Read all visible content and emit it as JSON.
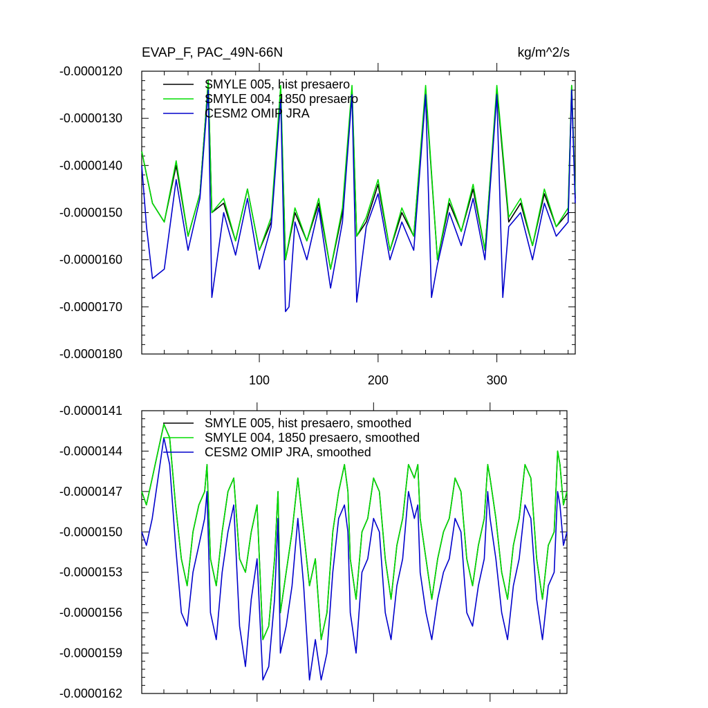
{
  "chart_data": [
    {
      "type": "line",
      "title": "EVAP_F, PAC_49N-66N",
      "units": "kg/m^2/s",
      "xlim": [
        1,
        366
      ],
      "ylim": [
        -1.8e-05,
        -1.2e-05
      ],
      "xticks": [
        100,
        200,
        300
      ],
      "xtick_labels": [
        "100",
        "200",
        "300"
      ],
      "yticks": [
        -1.8e-05,
        -1.7e-05,
        -1.6e-05,
        -1.5e-05,
        -1.4e-05,
        -1.3e-05,
        -1.2e-05
      ],
      "ytick_labels": [
        "-0.0000180",
        "-0.0000170",
        "-0.0000160",
        "-0.0000150",
        "-0.0000140",
        "-0.0000130",
        "-0.0000120"
      ],
      "legend_position": "top-left",
      "series": [
        {
          "name": "SMYLE 005, hist presaero",
          "color": "#000000",
          "x": [
            1,
            10,
            20,
            30,
            40,
            50,
            57,
            60,
            70,
            80,
            90,
            100,
            110,
            118,
            122,
            130,
            140,
            150,
            160,
            170,
            178,
            182,
            190,
            200,
            210,
            220,
            230,
            240,
            250,
            260,
            270,
            280,
            290,
            300,
            310,
            320,
            330,
            340,
            350,
            360,
            363,
            366
          ],
          "values": [
            -1.37e-05,
            -1.48e-05,
            -1.52e-05,
            -1.4e-05,
            -1.55e-05,
            -1.46e-05,
            -1.22e-05,
            -1.5e-05,
            -1.48e-05,
            -1.56e-05,
            -1.45e-05,
            -1.58e-05,
            -1.52e-05,
            -1.24e-05,
            -1.6e-05,
            -1.5e-05,
            -1.56e-05,
            -1.48e-05,
            -1.62e-05,
            -1.5e-05,
            -1.24e-05,
            -1.55e-05,
            -1.52e-05,
            -1.44e-05,
            -1.58e-05,
            -1.5e-05,
            -1.55e-05,
            -1.24e-05,
            -1.6e-05,
            -1.48e-05,
            -1.54e-05,
            -1.45e-05,
            -1.58e-05,
            -1.24e-05,
            -1.52e-05,
            -1.48e-05,
            -1.57e-05,
            -1.46e-05,
            -1.53e-05,
            -1.5e-05,
            -1.23e-05,
            -1.47e-05
          ]
        },
        {
          "name": "SMYLE 004, 1850 presaero",
          "color": "#00dd00",
          "x": [
            1,
            10,
            20,
            30,
            40,
            50,
            57,
            60,
            70,
            80,
            90,
            100,
            110,
            118,
            122,
            130,
            140,
            150,
            160,
            170,
            178,
            182,
            190,
            200,
            210,
            220,
            230,
            240,
            250,
            260,
            270,
            280,
            290,
            300,
            310,
            320,
            330,
            340,
            350,
            360,
            363,
            366
          ],
          "values": [
            -1.37e-05,
            -1.48e-05,
            -1.52e-05,
            -1.39e-05,
            -1.55e-05,
            -1.46e-05,
            -1.22e-05,
            -1.5e-05,
            -1.47e-05,
            -1.56e-05,
            -1.45e-05,
            -1.58e-05,
            -1.51e-05,
            -1.23e-05,
            -1.6e-05,
            -1.49e-05,
            -1.56e-05,
            -1.47e-05,
            -1.62e-05,
            -1.49e-05,
            -1.23e-05,
            -1.55e-05,
            -1.51e-05,
            -1.43e-05,
            -1.58e-05,
            -1.49e-05,
            -1.55e-05,
            -1.23e-05,
            -1.6e-05,
            -1.47e-05,
            -1.54e-05,
            -1.44e-05,
            -1.58e-05,
            -1.23e-05,
            -1.51e-05,
            -1.47e-05,
            -1.57e-05,
            -1.45e-05,
            -1.53e-05,
            -1.49e-05,
            -1.23e-05,
            -1.46e-05
          ]
        },
        {
          "name": "CESM2 OMIP JRA",
          "color": "#0000cc",
          "x": [
            1,
            5,
            10,
            20,
            30,
            40,
            50,
            57,
            60,
            70,
            80,
            90,
            100,
            110,
            118,
            122,
            125,
            130,
            140,
            150,
            160,
            170,
            178,
            182,
            190,
            200,
            210,
            220,
            230,
            240,
            245,
            250,
            260,
            270,
            280,
            290,
            300,
            305,
            310,
            320,
            330,
            340,
            350,
            360,
            363,
            366
          ],
          "values": [
            -1.4e-05,
            -1.53e-05,
            -1.64e-05,
            -1.62e-05,
            -1.43e-05,
            -1.58e-05,
            -1.47e-05,
            -1.24e-05,
            -1.68e-05,
            -1.5e-05,
            -1.59e-05,
            -1.47e-05,
            -1.62e-05,
            -1.53e-05,
            -1.26e-05,
            -1.71e-05,
            -1.7e-05,
            -1.52e-05,
            -1.6e-05,
            -1.49e-05,
            -1.66e-05,
            -1.52e-05,
            -1.25e-05,
            -1.69e-05,
            -1.53e-05,
            -1.46e-05,
            -1.6e-05,
            -1.52e-05,
            -1.58e-05,
            -1.25e-05,
            -1.68e-05,
            -1.61e-05,
            -1.5e-05,
            -1.57e-05,
            -1.47e-05,
            -1.6e-05,
            -1.25e-05,
            -1.68e-05,
            -1.53e-05,
            -1.5e-05,
            -1.6e-05,
            -1.48e-05,
            -1.55e-05,
            -1.52e-05,
            -1.24e-05,
            -1.48e-05
          ]
        }
      ]
    },
    {
      "type": "line",
      "title": "",
      "xlim": [
        1,
        366
      ],
      "ylim": [
        -1.62e-05,
        -1.41e-05
      ],
      "xticks": [
        100,
        200,
        300
      ],
      "xtick_labels": [],
      "yticks": [
        -1.62e-05,
        -1.59e-05,
        -1.56e-05,
        -1.53e-05,
        -1.5e-05,
        -1.47e-05,
        -1.44e-05,
        -1.41e-05
      ],
      "ytick_labels": [
        "-0.0000162",
        "-0.0000159",
        "-0.0000156",
        "-0.0000153",
        "-0.0000150",
        "-0.0000147",
        "-0.0000144",
        "-0.0000141"
      ],
      "legend_position": "top-left",
      "series": [
        {
          "name": "SMYLE 005, hist presaero, smoothed",
          "color": "#000000",
          "x": [
            1,
            5,
            10,
            15,
            20,
            25,
            30,
            35,
            40,
            45,
            50,
            55,
            57,
            60,
            65,
            70,
            75,
            80,
            85,
            90,
            95,
            100,
            105,
            110,
            115,
            118,
            120,
            125,
            130,
            135,
            140,
            145,
            150,
            155,
            160,
            165,
            170,
            175,
            178,
            180,
            185,
            190,
            195,
            200,
            205,
            210,
            215,
            220,
            225,
            230,
            235,
            238,
            240,
            245,
            250,
            255,
            260,
            265,
            270,
            275,
            280,
            285,
            290,
            295,
            298,
            300,
            305,
            310,
            315,
            320,
            325,
            330,
            335,
            340,
            345,
            350,
            355,
            358,
            360,
            363,
            366
          ],
          "values": [
            -1.47e-05,
            -1.48e-05,
            -1.46e-05,
            -1.44e-05,
            -1.42e-05,
            -1.43e-05,
            -1.48e-05,
            -1.52e-05,
            -1.54e-05,
            -1.5e-05,
            -1.48e-05,
            -1.47e-05,
            -1.45e-05,
            -1.52e-05,
            -1.54e-05,
            -1.5e-05,
            -1.47e-05,
            -1.46e-05,
            -1.52e-05,
            -1.53e-05,
            -1.5e-05,
            -1.48e-05,
            -1.58e-05,
            -1.57e-05,
            -1.52e-05,
            -1.47e-05,
            -1.56e-05,
            -1.53e-05,
            -1.5e-05,
            -1.46e-05,
            -1.5e-05,
            -1.54e-05,
            -1.52e-05,
            -1.58e-05,
            -1.56e-05,
            -1.5e-05,
            -1.47e-05,
            -1.45e-05,
            -1.47e-05,
            -1.52e-05,
            -1.55e-05,
            -1.5e-05,
            -1.49e-05,
            -1.46e-05,
            -1.47e-05,
            -1.52e-05,
            -1.55e-05,
            -1.51e-05,
            -1.49e-05,
            -1.45e-05,
            -1.46e-05,
            -1.45e-05,
            -1.49e-05,
            -1.52e-05,
            -1.55e-05,
            -1.52e-05,
            -1.5e-05,
            -1.49e-05,
            -1.46e-05,
            -1.47e-05,
            -1.52e-05,
            -1.54e-05,
            -1.51e-05,
            -1.49e-05,
            -1.45e-05,
            -1.46e-05,
            -1.49e-05,
            -1.53e-05,
            -1.55e-05,
            -1.51e-05,
            -1.49e-05,
            -1.45e-05,
            -1.46e-05,
            -1.52e-05,
            -1.55e-05,
            -1.51e-05,
            -1.5e-05,
            -1.44e-05,
            -1.45e-05,
            -1.48e-05,
            -1.47e-05
          ]
        },
        {
          "name": "SMYLE 004, 1850 presaero, smoothed",
          "color": "#00dd00",
          "x": [
            1,
            5,
            10,
            15,
            20,
            25,
            30,
            35,
            40,
            45,
            50,
            55,
            57,
            60,
            65,
            70,
            75,
            80,
            85,
            90,
            95,
            100,
            105,
            110,
            115,
            118,
            120,
            125,
            130,
            135,
            140,
            145,
            150,
            155,
            160,
            165,
            170,
            175,
            178,
            180,
            185,
            190,
            195,
            200,
            205,
            210,
            215,
            220,
            225,
            230,
            235,
            238,
            240,
            245,
            250,
            255,
            260,
            265,
            270,
            275,
            280,
            285,
            290,
            295,
            298,
            300,
            305,
            310,
            315,
            320,
            325,
            330,
            335,
            340,
            345,
            350,
            355,
            358,
            360,
            363,
            366
          ],
          "values": [
            -1.47e-05,
            -1.48e-05,
            -1.46e-05,
            -1.44e-05,
            -1.42e-05,
            -1.43e-05,
            -1.48e-05,
            -1.52e-05,
            -1.54e-05,
            -1.5e-05,
            -1.48e-05,
            -1.47e-05,
            -1.45e-05,
            -1.52e-05,
            -1.54e-05,
            -1.5e-05,
            -1.47e-05,
            -1.46e-05,
            -1.52e-05,
            -1.53e-05,
            -1.5e-05,
            -1.48e-05,
            -1.58e-05,
            -1.57e-05,
            -1.52e-05,
            -1.47e-05,
            -1.56e-05,
            -1.53e-05,
            -1.5e-05,
            -1.46e-05,
            -1.5e-05,
            -1.54e-05,
            -1.52e-05,
            -1.58e-05,
            -1.56e-05,
            -1.5e-05,
            -1.47e-05,
            -1.45e-05,
            -1.47e-05,
            -1.52e-05,
            -1.55e-05,
            -1.5e-05,
            -1.49e-05,
            -1.46e-05,
            -1.47e-05,
            -1.52e-05,
            -1.55e-05,
            -1.51e-05,
            -1.49e-05,
            -1.45e-05,
            -1.46e-05,
            -1.45e-05,
            -1.49e-05,
            -1.52e-05,
            -1.55e-05,
            -1.52e-05,
            -1.5e-05,
            -1.49e-05,
            -1.46e-05,
            -1.47e-05,
            -1.52e-05,
            -1.54e-05,
            -1.51e-05,
            -1.49e-05,
            -1.45e-05,
            -1.46e-05,
            -1.49e-05,
            -1.53e-05,
            -1.55e-05,
            -1.51e-05,
            -1.49e-05,
            -1.45e-05,
            -1.46e-05,
            -1.52e-05,
            -1.55e-05,
            -1.51e-05,
            -1.5e-05,
            -1.44e-05,
            -1.45e-05,
            -1.48e-05,
            -1.47e-05
          ]
        },
        {
          "name": "CESM2 OMIP JRA, smoothed",
          "color": "#0000cc",
          "x": [
            1,
            5,
            10,
            15,
            20,
            25,
            30,
            35,
            40,
            45,
            50,
            55,
            57,
            60,
            65,
            70,
            75,
            80,
            85,
            90,
            95,
            100,
            105,
            110,
            115,
            118,
            120,
            125,
            130,
            135,
            140,
            145,
            150,
            155,
            160,
            165,
            170,
            175,
            178,
            180,
            185,
            190,
            195,
            200,
            205,
            210,
            215,
            220,
            225,
            230,
            235,
            238,
            240,
            245,
            250,
            255,
            260,
            265,
            270,
            275,
            280,
            285,
            290,
            295,
            298,
            300,
            305,
            310,
            315,
            320,
            325,
            330,
            335,
            340,
            345,
            350,
            355,
            358,
            360,
            363,
            366
          ],
          "values": [
            -1.5e-05,
            -1.51e-05,
            -1.49e-05,
            -1.46e-05,
            -1.43e-05,
            -1.45e-05,
            -1.51e-05,
            -1.56e-05,
            -1.57e-05,
            -1.53e-05,
            -1.51e-05,
            -1.49e-05,
            -1.47e-05,
            -1.56e-05,
            -1.58e-05,
            -1.53e-05,
            -1.5e-05,
            -1.48e-05,
            -1.57e-05,
            -1.6e-05,
            -1.55e-05,
            -1.52e-05,
            -1.61e-05,
            -1.6e-05,
            -1.55e-05,
            -1.49e-05,
            -1.59e-05,
            -1.57e-05,
            -1.54e-05,
            -1.49e-05,
            -1.54e-05,
            -1.61e-05,
            -1.58e-05,
            -1.61e-05,
            -1.59e-05,
            -1.53e-05,
            -1.49e-05,
            -1.48e-05,
            -1.5e-05,
            -1.56e-05,
            -1.59e-05,
            -1.53e-05,
            -1.52e-05,
            -1.49e-05,
            -1.5e-05,
            -1.56e-05,
            -1.58e-05,
            -1.54e-05,
            -1.52e-05,
            -1.47e-05,
            -1.49e-05,
            -1.48e-05,
            -1.53e-05,
            -1.56e-05,
            -1.58e-05,
            -1.55e-05,
            -1.53e-05,
            -1.52e-05,
            -1.49e-05,
            -1.5e-05,
            -1.56e-05,
            -1.57e-05,
            -1.54e-05,
            -1.52e-05,
            -1.47e-05,
            -1.49e-05,
            -1.52e-05,
            -1.56e-05,
            -1.58e-05,
            -1.54e-05,
            -1.52e-05,
            -1.48e-05,
            -1.49e-05,
            -1.55e-05,
            -1.58e-05,
            -1.54e-05,
            -1.53e-05,
            -1.47e-05,
            -1.48e-05,
            -1.51e-05,
            -1.5e-05
          ]
        }
      ]
    }
  ]
}
